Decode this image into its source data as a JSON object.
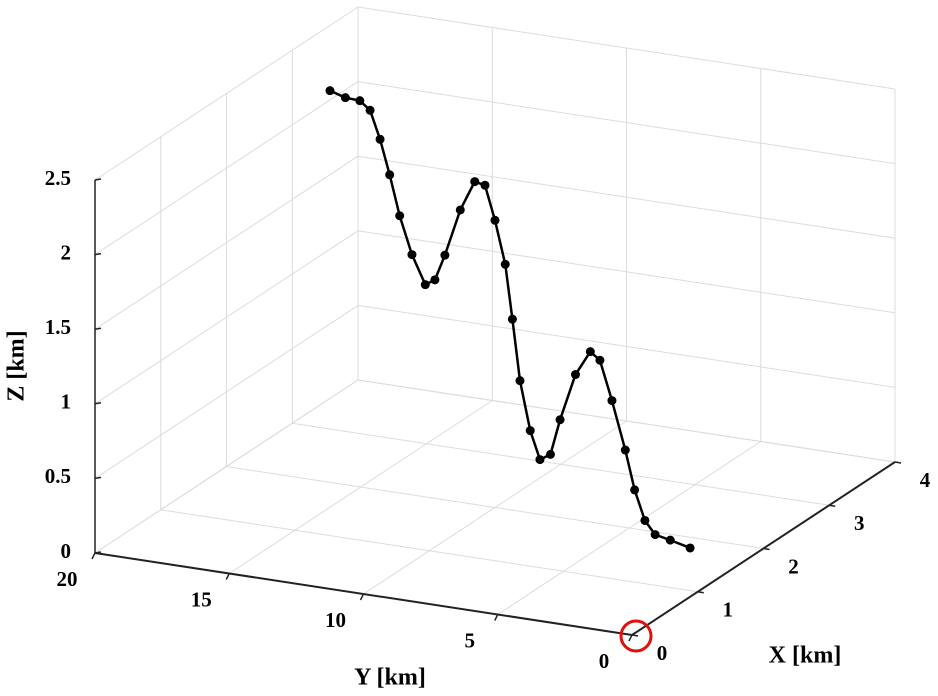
{
  "chart_data": {
    "type": "line3d",
    "xlabel": "X [km]",
    "ylabel": "Y [km]",
    "zlabel": "Z [km]",
    "x": [
      3.19,
      3.13,
      3.06,
      3.02,
      2.98,
      2.93,
      2.89,
      2.84,
      2.79,
      2.74,
      2.7,
      2.64,
      2.57,
      2.53,
      2.49,
      2.45,
      2.42,
      2.38,
      2.34,
      2.3,
      2.26,
      2.21,
      2.15,
      2.09,
      2.04,
      1.99,
      1.94,
      1.89,
      1.85,
      1.81,
      1.75,
      1.66
    ],
    "y": [
      19.06,
      18.34,
      17.63,
      17.15,
      16.68,
      16.2,
      15.73,
      15.15,
      14.53,
      14.05,
      13.58,
      12.86,
      12.15,
      11.67,
      11.2,
      10.72,
      10.38,
      10.0,
      9.52,
      9.06,
      8.57,
      8.09,
      7.37,
      6.67,
      6.19,
      5.62,
      5.0,
      4.53,
      4.05,
      3.57,
      2.86,
      1.9
    ],
    "z": [
      2.2,
      2.19,
      2.21,
      2.17,
      2.0,
      1.79,
      1.54,
      1.31,
      1.14,
      1.2,
      1.39,
      1.73,
      1.96,
      1.96,
      1.75,
      1.48,
      1.13,
      0.74,
      0.43,
      0.26,
      0.32,
      0.58,
      0.92,
      1.11,
      1.08,
      0.84,
      0.54,
      0.3,
      0.12,
      0.05,
      0.05,
      0.05
    ],
    "color": "#000000",
    "xlim": [
      0,
      4
    ],
    "ylim": [
      0,
      20
    ],
    "zlim": [
      0,
      2.5
    ],
    "xticks": [
      0,
      1,
      2,
      3,
      4
    ],
    "yticks": [
      0,
      5,
      10,
      15,
      20
    ],
    "zticks": [
      0,
      0.5,
      1,
      1.5,
      2,
      2.5
    ],
    "grid": true
  }
}
